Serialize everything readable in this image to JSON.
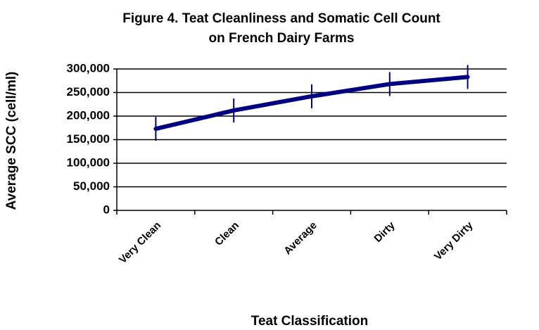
{
  "chart_data": {
    "type": "line",
    "title": "Figure 4.  Teat Cleanliness and Somatic Cell Count",
    "subtitle": "on French Dairy Farms",
    "x_label": "Teat Classification",
    "y_label": "Average SCC (cell/ml)",
    "categories": [
      "Very Clean",
      "Clean",
      "Average",
      "Dirty",
      "Very Dirty"
    ],
    "series": [
      {
        "name": "Average SCC",
        "color": "#000080",
        "values": [
          173000,
          212000,
          242000,
          268000,
          283000
        ]
      }
    ],
    "ylim": [
      0,
      300000
    ],
    "yticks": [
      0,
      {
        "value": 50000,
        "label": "50,000"
      },
      {
        "value": 100000,
        "label": "100,000"
      },
      {
        "value": 150000,
        "label": "150,000"
      },
      {
        "value": 200000,
        "label": "200,000"
      },
      {
        "value": 250000,
        "label": "250,000"
      },
      {
        "value": 300000,
        "label": "300,000"
      }
    ],
    "grid": true
  }
}
